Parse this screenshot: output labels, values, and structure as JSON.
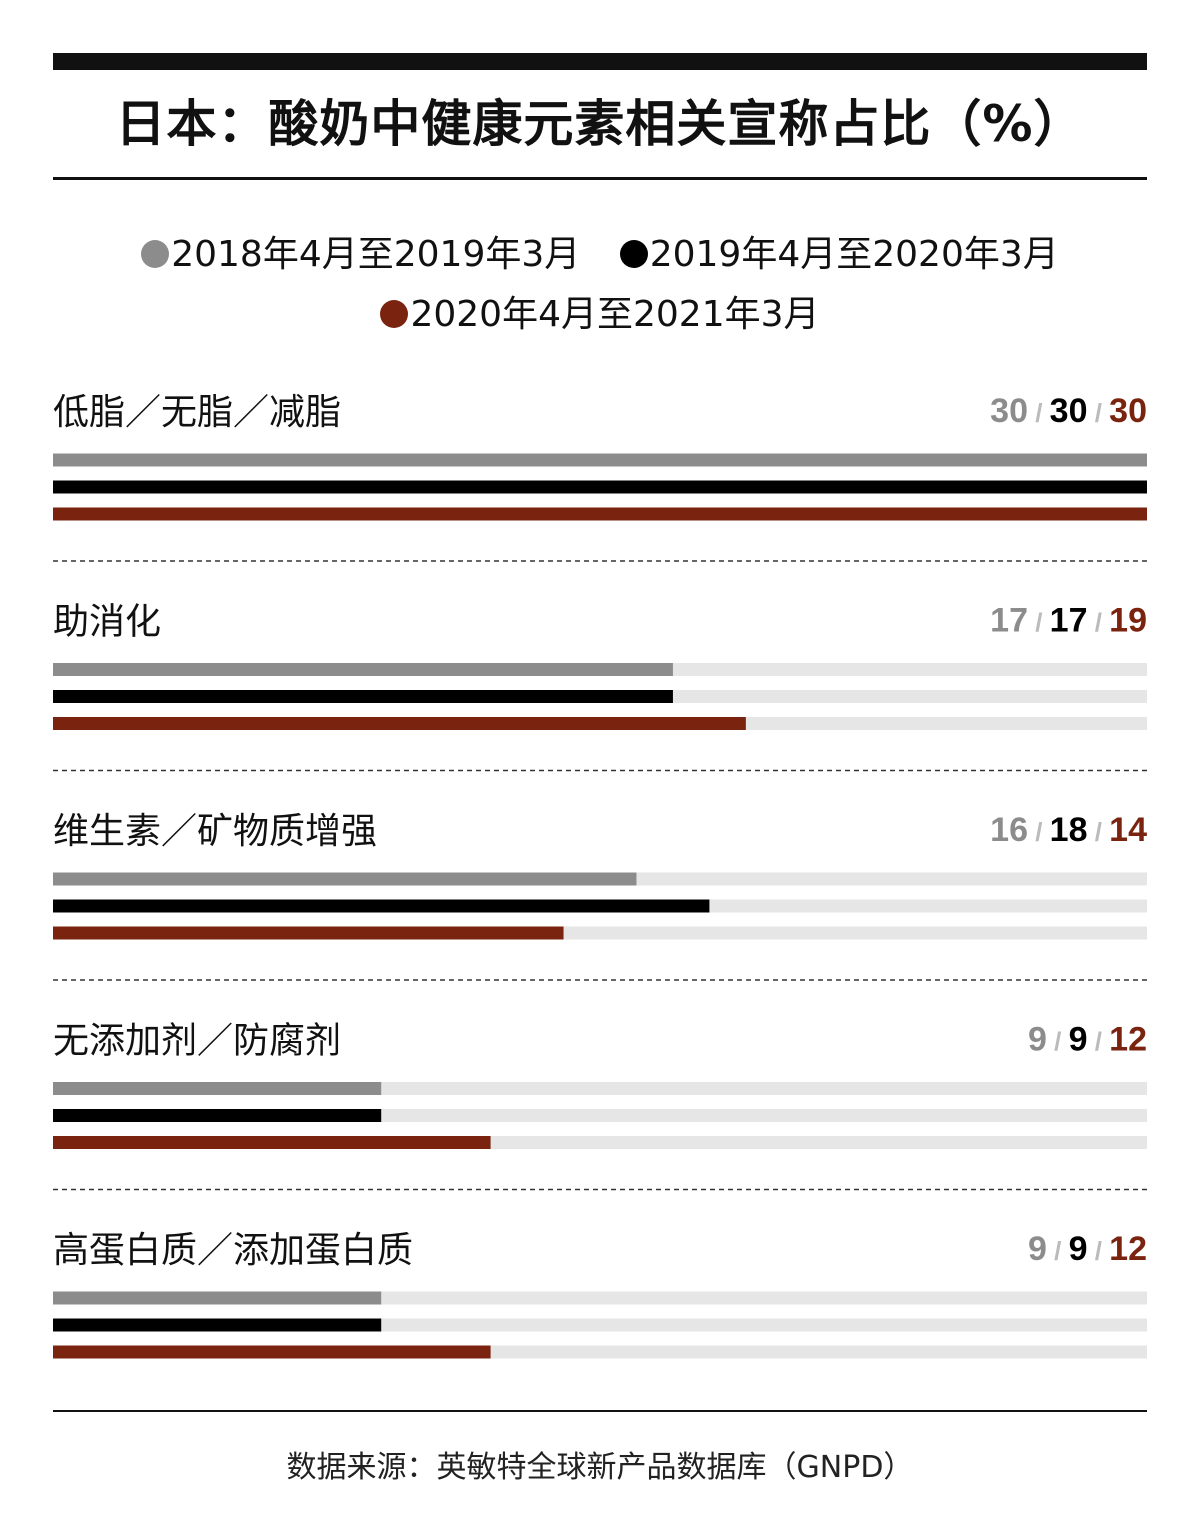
{
  "chart_data": {
    "type": "bar",
    "orientation": "horizontal",
    "title": "日本：酸奶中健康元素相关宣称占比（%）",
    "categories": [
      "低脂／无脂／减脂",
      "助消化",
      "维生素／矿物质增强",
      "无添加剂／防腐剂",
      "高蛋白质／添加蛋白质"
    ],
    "series": [
      {
        "name": "2018年4月至2019年3月",
        "color": "#8c8c8c",
        "values": [
          30,
          17,
          16,
          9,
          9
        ]
      },
      {
        "name": "2019年4月至2020年3月",
        "color": "#000000",
        "values": [
          30,
          17,
          18,
          9,
          9
        ]
      },
      {
        "name": "2020年4月至2021年3月",
        "color": "#7a2410",
        "values": [
          30,
          19,
          14,
          12,
          12
        ]
      }
    ],
    "xlim": [
      0,
      30
    ],
    "track_color": "#e6e6e6",
    "grid": false,
    "legend_position": "top-center",
    "source": "数据来源：英敏特全球新产品数据库（GNPD）"
  }
}
